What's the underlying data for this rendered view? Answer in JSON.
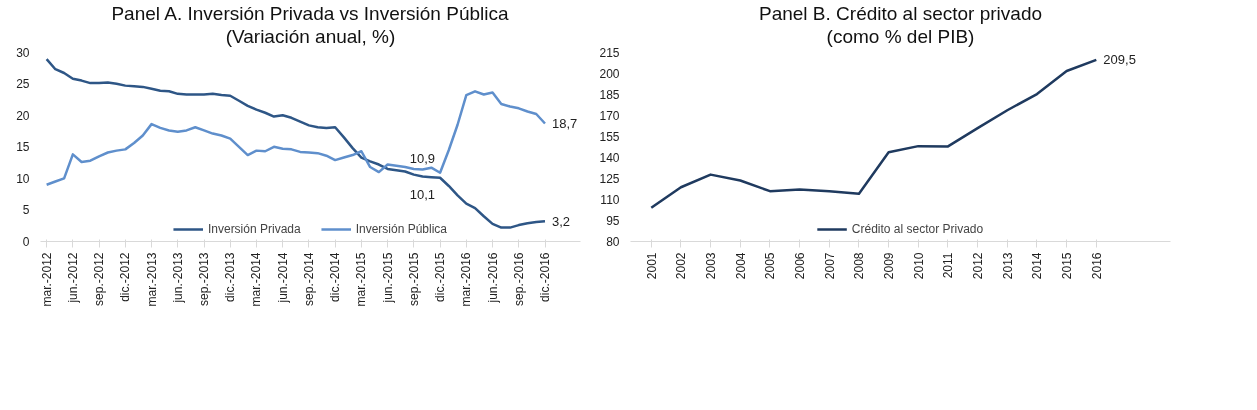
{
  "chart_data": [
    {
      "type": "line",
      "title": "Panel A. Inversión Privada vs Inversión Pública",
      "subtitle": "(Variación anual, %)",
      "categories": [
        "mar.-2012",
        null,
        null,
        "jun.-2012",
        null,
        null,
        "sep.-2012",
        null,
        null,
        "dic.-2012",
        null,
        null,
        "mar.-2013",
        null,
        null,
        "jun.-2013",
        null,
        null,
        "sep.-2013",
        null,
        null,
        "dic.-2013",
        null,
        null,
        "mar.-2014",
        null,
        null,
        "jun.-2014",
        null,
        null,
        "sep.-2014",
        null,
        null,
        "dic.-2014",
        null,
        null,
        "mar.-2015",
        null,
        null,
        "jun.-2015",
        null,
        null,
        "sep.-2015",
        null,
        null,
        "dic.-2015",
        null,
        null,
        "mar.-2016",
        null,
        null,
        "jun.-2016",
        null,
        null,
        "sep.-2016",
        null,
        null,
        "dic.-2016"
      ],
      "series": [
        {
          "name": "Inversión Privada",
          "color": "#2e5686",
          "values": [
            28.9,
            27.3,
            26.7,
            25.8,
            25.5,
            25.1,
            25.1,
            25.2,
            25.0,
            24.7,
            24.6,
            24.5,
            24.2,
            23.9,
            23.8,
            23.4,
            23.3,
            23.3,
            23.3,
            23.4,
            23.2,
            23.1,
            22.3,
            21.5,
            20.9,
            20.4,
            19.8,
            20.0,
            19.6,
            19.0,
            18.4,
            18.1,
            18.0,
            18.1,
            16.5,
            14.8,
            13.3,
            12.7,
            12.2,
            11.5,
            11.3,
            11.1,
            10.6,
            10.3,
            10.2,
            10.1,
            8.8,
            7.3,
            6.0,
            5.3,
            4.0,
            2.8,
            2.2,
            2.2,
            2.6,
            2.9,
            3.1,
            3.2
          ],
          "value_labels": [
            null,
            null,
            null,
            null,
            null,
            null,
            null,
            null,
            null,
            null,
            null,
            null,
            null,
            null,
            null,
            null,
            null,
            null,
            null,
            null,
            null,
            null,
            null,
            null,
            null,
            null,
            null,
            null,
            null,
            null,
            null,
            null,
            null,
            null,
            null,
            null,
            null,
            null,
            null,
            null,
            null,
            null,
            null,
            null,
            null,
            "10,1",
            null,
            null,
            null,
            null,
            null,
            null,
            null,
            null,
            null,
            null,
            null,
            "3,2"
          ]
        },
        {
          "name": "Inversión Pública",
          "color": "#5f8fcc",
          "values": [
            9.0,
            9.5,
            10.0,
            13.8,
            12.6,
            12.8,
            13.5,
            14.1,
            14.4,
            14.6,
            15.6,
            16.8,
            18.6,
            18.0,
            17.6,
            17.4,
            17.6,
            18.1,
            17.6,
            17.1,
            16.8,
            16.3,
            15.0,
            13.7,
            14.4,
            14.3,
            15.0,
            14.7,
            14.6,
            14.2,
            14.1,
            14.0,
            13.6,
            12.9,
            13.3,
            13.7,
            14.3,
            11.8,
            11.0,
            12.2,
            12.0,
            11.8,
            11.5,
            11.4,
            11.7,
            10.9,
            14.5,
            18.5,
            23.2,
            23.8,
            23.3,
            23.6,
            21.8,
            21.4,
            21.1,
            20.6,
            20.2,
            18.7
          ],
          "value_labels": [
            null,
            null,
            null,
            null,
            null,
            null,
            null,
            null,
            null,
            null,
            null,
            null,
            null,
            null,
            null,
            null,
            null,
            null,
            null,
            null,
            null,
            null,
            null,
            null,
            null,
            null,
            null,
            null,
            null,
            null,
            null,
            null,
            null,
            null,
            null,
            null,
            null,
            null,
            null,
            null,
            null,
            null,
            null,
            null,
            null,
            "10,9",
            null,
            null,
            null,
            null,
            null,
            null,
            null,
            null,
            null,
            null,
            null,
            "18,7"
          ]
        }
      ],
      "ylim": [
        0,
        30
      ],
      "yticks": [
        0,
        5,
        10,
        15,
        20,
        25,
        30
      ],
      "legend": "bottom"
    },
    {
      "type": "line",
      "title": "Panel B. Crédito al sector privado",
      "subtitle": "(como % del PIB)",
      "categories": [
        "2001",
        "2002",
        "2003",
        "2004",
        "2005",
        "2006",
        "2007",
        "2008",
        "2009",
        "2010",
        "2011",
        "2012",
        "2013",
        "2014",
        "2015",
        "2016"
      ],
      "series": [
        {
          "name": "Crédito al sector Privado",
          "color": "#1f3a5f",
          "values": [
            104.0,
            118.7,
            127.7,
            123.5,
            115.9,
            117.1,
            115.9,
            114.1,
            143.6,
            148.0,
            147.8,
            160.8,
            173.6,
            185.1,
            201.6,
            209.5
          ],
          "value_labels": [
            null,
            null,
            null,
            null,
            null,
            null,
            null,
            null,
            null,
            null,
            null,
            null,
            null,
            null,
            null,
            "209,5"
          ]
        }
      ],
      "ylim": [
        80,
        215
      ],
      "yticks": [
        80,
        95,
        110,
        125,
        140,
        155,
        170,
        185,
        200,
        215
      ],
      "legend": "bottom"
    }
  ]
}
